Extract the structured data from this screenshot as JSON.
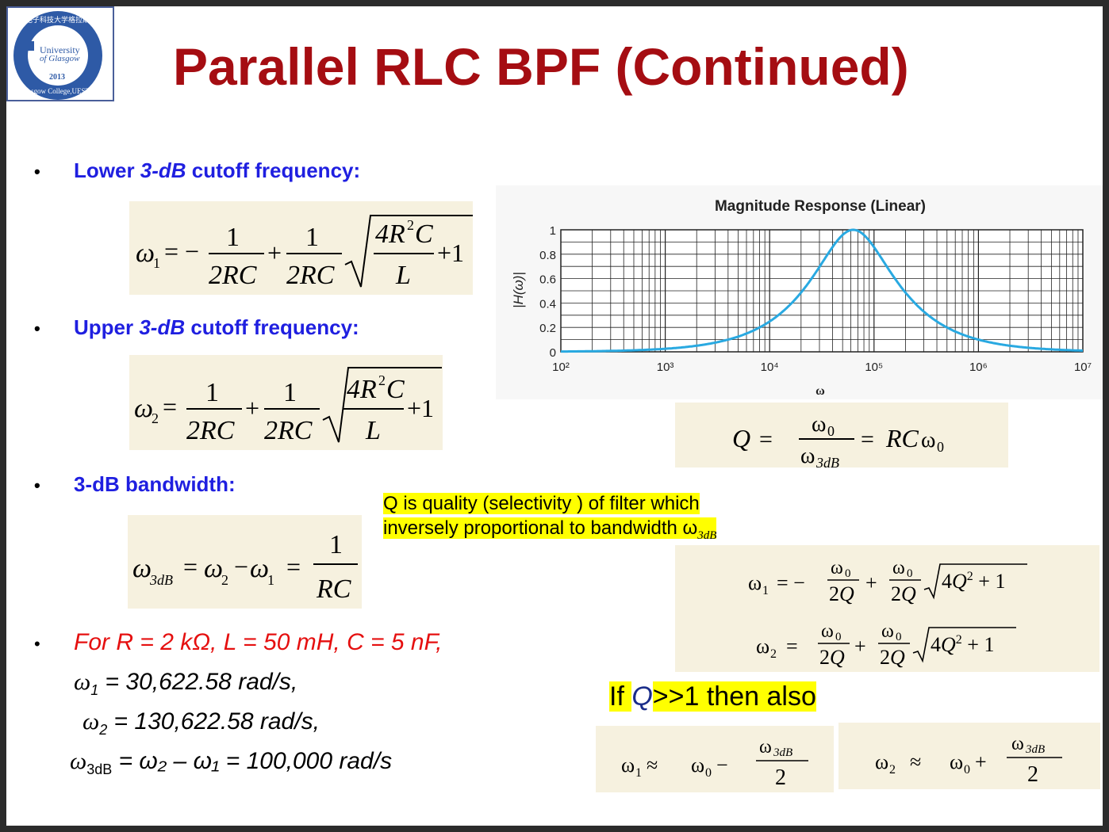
{
  "logo": {
    "top_text": "电子科技大学格拉斯哥学院",
    "line1": "University",
    "line2": "of Glasgow",
    "year": "2013",
    "bottom_text": "Glasgow College,UESTC"
  },
  "title": "Parallel RLC BPF (Continued)",
  "bullets": {
    "lower": {
      "pre": "Lower ",
      "it": "3-dB",
      "post": " cutoff frequency:"
    },
    "upper": {
      "pre": "Upper ",
      "it": "3-dB",
      "post": " cutoff frequency:"
    },
    "bw": "3-dB bandwidth:",
    "example": "For R = 2 kΩ, L = 50 mH, C = 5 nF,"
  },
  "results": {
    "w1": "= 30,622.58 rad/s,",
    "w2": "= 130,622.58 rad/s,",
    "w3db": "= ω₂ – ω₁ = 100,000 rad/s"
  },
  "note": {
    "line1": "Q is quality (selectivity ) of filter which",
    "line2": "inversely proportional to bandwidth ω",
    "sub": "3dB"
  },
  "if_text": {
    "pre": "If ",
    "q": "Q",
    "post": ">>1 then also"
  },
  "chart_data": {
    "type": "line",
    "title": "Magnitude Response (Linear)",
    "xlabel": "ω",
    "ylabel": "|H(ω)|",
    "xscale": "log",
    "xlim": [
      100,
      10000000
    ],
    "ylim": [
      0,
      1
    ],
    "xticks": [
      "10²",
      "10³",
      "10⁴",
      "10⁵",
      "10⁶",
      "10⁷"
    ],
    "yticks": [
      "0",
      "0.2",
      "0.4",
      "0.6",
      "0.8",
      "1"
    ],
    "grid": true,
    "series": [
      {
        "x": [
          100,
          1000,
          5000,
          10000,
          20000,
          30000,
          40000,
          50000,
          63246,
          80000,
          100000,
          130000,
          200000,
          500000,
          1000000,
          10000000
        ],
        "y": [
          0.0016,
          0.016,
          0.081,
          0.165,
          0.354,
          0.57,
          0.76,
          0.93,
          1.0,
          0.95,
          0.79,
          0.6,
          0.36,
          0.13,
          0.063,
          0.006
        ],
        "color": "#29a9e1"
      }
    ]
  },
  "colors": {
    "title": "#a50d12",
    "bullet": "#1f1fe0",
    "example": "#e50f0f",
    "highlight": "#ffff00",
    "curve": "#29a9e1"
  }
}
